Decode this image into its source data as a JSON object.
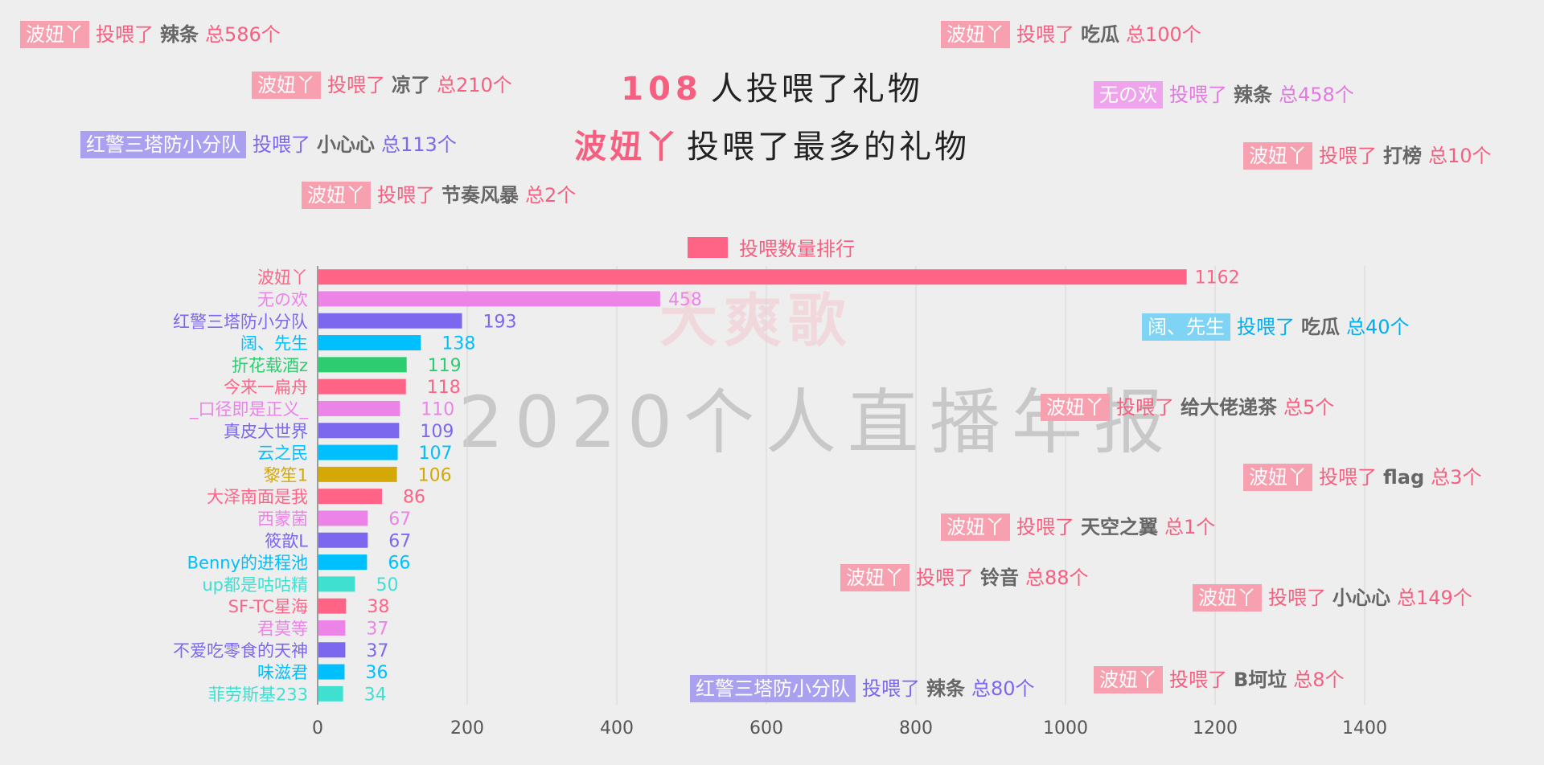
{
  "headline": {
    "count_num": "108",
    "count_text": "人投喂了礼物",
    "top_user": "波妞丫",
    "top_text": "投喂了最多的礼物"
  },
  "watermark": {
    "brand": "大爽歌",
    "report": "2020个人直播年报"
  },
  "legend": {
    "label": "投喂数量排行"
  },
  "colors": {
    "accent": "#f65f7f",
    "pink": "#ff6487",
    "violet": "#ec84e8",
    "purple": "#7b68ee",
    "blue": "#00bfff",
    "green": "#2ecc71",
    "gold": "#d4a806",
    "teal": "#40e0d0",
    "grid": "#d5d5d5",
    "axis": "#555555"
  },
  "gift_bubbles": [
    {
      "user": "波妞丫",
      "verb": "投喂了",
      "gift": "辣条",
      "total": "总586个",
      "color": "#f65f7f",
      "badge": "#f7a0b0"
    },
    {
      "user": "波妞丫",
      "verb": "投喂了",
      "gift": "吃瓜",
      "total": "总100个",
      "color": "#f65f7f",
      "badge": "#f7a0b0"
    },
    {
      "user": "波妞丫",
      "verb": "投喂了",
      "gift": "凉了",
      "total": "总210个",
      "color": "#f65f7f",
      "badge": "#f7a0b0"
    },
    {
      "user": "无の欢",
      "verb": "投喂了",
      "gift": "辣条",
      "total": "总458个",
      "color": "#e477e2",
      "badge": "#efa3ec"
    },
    {
      "user": "红警三塔防小分队",
      "verb": "投喂了",
      "gift": "小心心",
      "total": "总113个",
      "color": "#7b68ee",
      "badge": "#aaa0f0"
    },
    {
      "user": "波妞丫",
      "verb": "投喂了",
      "gift": "打榜",
      "total": "总10个",
      "color": "#f65f7f",
      "badge": "#f7a0b0"
    },
    {
      "user": "波妞丫",
      "verb": "投喂了",
      "gift": "节奏风暴",
      "total": "总2个",
      "color": "#f65f7f",
      "badge": "#f7a0b0"
    },
    {
      "user": "阔、先生",
      "verb": "投喂了",
      "gift": "吃瓜",
      "total": "总40个",
      "color": "#00aef0",
      "badge": "#7fd4f5"
    },
    {
      "user": "波妞丫",
      "verb": "投喂了",
      "gift": "给大佬递茶",
      "total": "总5个",
      "color": "#f65f7f",
      "badge": "#f7a0b0"
    },
    {
      "user": "波妞丫",
      "verb": "投喂了",
      "gift": "flag",
      "total": "总3个",
      "color": "#f65f7f",
      "badge": "#f7a0b0"
    },
    {
      "user": "波妞丫",
      "verb": "投喂了",
      "gift": "天空之翼",
      "total": "总1个",
      "color": "#f65f7f",
      "badge": "#f7a0b0"
    },
    {
      "user": "波妞丫",
      "verb": "投喂了",
      "gift": "铃音",
      "total": "总88个",
      "color": "#f65f7f",
      "badge": "#f7a0b0"
    },
    {
      "user": "波妞丫",
      "verb": "投喂了",
      "gift": "小心心",
      "total": "总149个",
      "color": "#f65f7f",
      "badge": "#f7a0b0"
    },
    {
      "user": "红警三塔防小分队",
      "verb": "投喂了",
      "gift": "辣条",
      "total": "总80个",
      "color": "#7b68ee",
      "badge": "#aaa0f0"
    },
    {
      "user": "波妞丫",
      "verb": "投喂了",
      "gift": "B坷垃",
      "total": "总8个",
      "color": "#f65f7f",
      "badge": "#f7a0b0"
    }
  ],
  "chart_data": {
    "type": "bar",
    "orientation": "horizontal",
    "title": "",
    "xlabel": "",
    "ylabel": "",
    "xlim": [
      0,
      1400
    ],
    "x_ticks": [
      0,
      200,
      400,
      600,
      800,
      1000,
      1200,
      1400
    ],
    "grid": true,
    "legend": "top-center",
    "series": [
      {
        "name": "投喂数量排行",
        "values": [
          1162,
          458,
          193,
          138,
          119,
          118,
          110,
          109,
          107,
          106,
          86,
          67,
          67,
          66,
          50,
          38,
          37,
          37,
          36,
          34
        ]
      }
    ],
    "categories": [
      "波妞丫",
      "无の欢",
      "红警三塔防小分队",
      "阔、先生",
      "折花载酒z",
      "今来一扁舟",
      "_口径即是正义_",
      "真皮大世界",
      "云之民",
      "黎笙1",
      "大泽南面是我",
      "西蒙菌",
      "筱歆L",
      "Benny的进程池",
      "up都是咕咕精",
      "SF-TC星海",
      "君莫等",
      "不爱吃零食的天神",
      "味滋君",
      "菲劳斯基233"
    ],
    "bar_colors": [
      "#ff6487",
      "#ec84e8",
      "#7b68ee",
      "#00bfff",
      "#2ecc71",
      "#ff6487",
      "#ec84e8",
      "#7b68ee",
      "#00bfff",
      "#d4a806",
      "#ff6487",
      "#ec84e8",
      "#7b68ee",
      "#00bfff",
      "#40e0d0",
      "#ff6487",
      "#ec84e8",
      "#7b68ee",
      "#00bfff",
      "#40e0d0"
    ]
  }
}
